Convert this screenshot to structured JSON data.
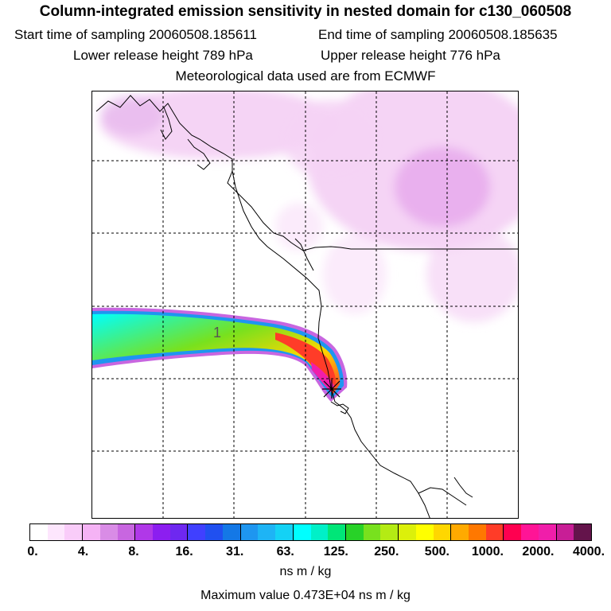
{
  "title": "Column-integrated emission sensitivity in nested domain for c130_060508",
  "info": {
    "start_label": "Start time of sampling 20060508.185611",
    "end_label": "End time of sampling 20060508.185635",
    "lower_label": "Lower release height  789 hPa",
    "upper_label": "Upper release height  776 hPa",
    "met_label": "Meteorological data used are from ECMWF"
  },
  "map": {
    "contour_label": "1",
    "release_marker": "release-point"
  },
  "colorbar": {
    "colors": [
      "#ffffff",
      "#fde6fd",
      "#f9ccf9",
      "#f5b3f5",
      "#d98ce6",
      "#c866e0",
      "#b038e8",
      "#8c1ef0",
      "#6e28f0",
      "#4040ff",
      "#2050f0",
      "#1478e6",
      "#1e96f0",
      "#1eb4f5",
      "#14d2f5",
      "#00ffff",
      "#00f0c8",
      "#00e678",
      "#28d228",
      "#78e11e",
      "#b4eb14",
      "#dcf00a",
      "#ffff00",
      "#ffd700",
      "#ffaa00",
      "#ff7800",
      "#ff3c28",
      "#ff0050",
      "#ff1496",
      "#f01eaa",
      "#c81e96",
      "#64144b"
    ],
    "ticks": [
      "0.",
      "4.",
      "8.",
      "16.",
      "31.",
      "63.",
      "125.",
      "250.",
      "500.",
      "1000.",
      "2000.",
      "4000."
    ],
    "units": "ns m / kg"
  },
  "max_value": "Maximum value  0.473E+04 ns m / kg"
}
